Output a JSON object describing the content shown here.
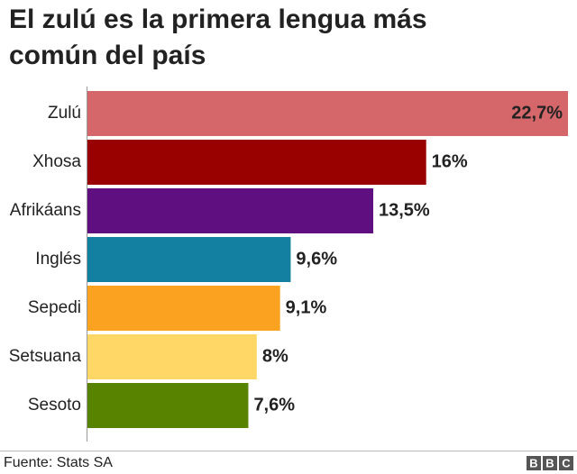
{
  "chart_data": {
    "type": "bar",
    "orientation": "horizontal",
    "title": "El zulú es la primera lengua más común del país",
    "categories": [
      "Zulú",
      "Xhosa",
      "Afrikáans",
      "Inglés",
      "Sepedi",
      "Setsuana",
      "Sesoto"
    ],
    "values": [
      22.7,
      16,
      13.5,
      9.6,
      9.1,
      8,
      7.6
    ],
    "value_labels": [
      "22,7%",
      "16%",
      "13,5%",
      "9,6%",
      "9,1%",
      "8%",
      "7,6%"
    ],
    "colors": [
      "#d5676a",
      "#990000",
      "#5f0f80",
      "#1380a1",
      "#fba320",
      "#fed766",
      "#588300"
    ]
  },
  "source": "Fuente: Stats SA",
  "logo": [
    "B",
    "B",
    "C"
  ]
}
